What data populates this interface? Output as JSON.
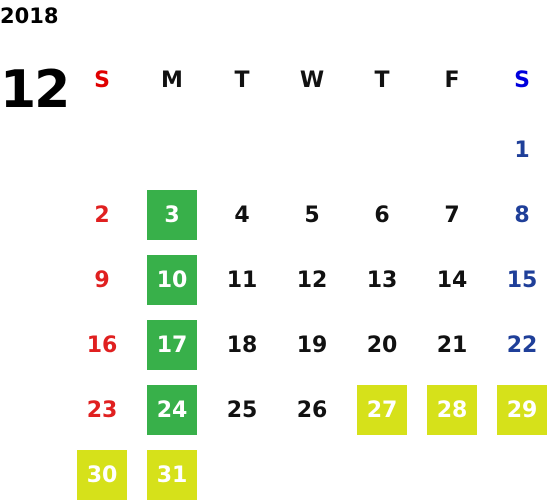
{
  "year": "2018",
  "month": "12",
  "weekdays": [
    "S",
    "M",
    "T",
    "W",
    "T",
    "F",
    "S"
  ],
  "days": [
    {
      "label": "1"
    },
    {
      "label": "2"
    },
    {
      "label": "3"
    },
    {
      "label": "4"
    },
    {
      "label": "5"
    },
    {
      "label": "6"
    },
    {
      "label": "7"
    },
    {
      "label": "8"
    },
    {
      "label": "9"
    },
    {
      "label": "10"
    },
    {
      "label": "11"
    },
    {
      "label": "12"
    },
    {
      "label": "13"
    },
    {
      "label": "14"
    },
    {
      "label": "15"
    },
    {
      "label": "16"
    },
    {
      "label": "17"
    },
    {
      "label": "18"
    },
    {
      "label": "19"
    },
    {
      "label": "20"
    },
    {
      "label": "21"
    },
    {
      "label": "22"
    },
    {
      "label": "23"
    },
    {
      "label": "24"
    },
    {
      "label": "25"
    },
    {
      "label": "26"
    },
    {
      "label": "27"
    },
    {
      "label": "28"
    },
    {
      "label": "29"
    },
    {
      "label": "30"
    },
    {
      "label": "31"
    }
  ],
  "colors": {
    "sunday": "#e02020",
    "saturday": "#1f3f99",
    "highlight_green": "#38b04a",
    "highlight_yellow": "#d6e11a"
  }
}
